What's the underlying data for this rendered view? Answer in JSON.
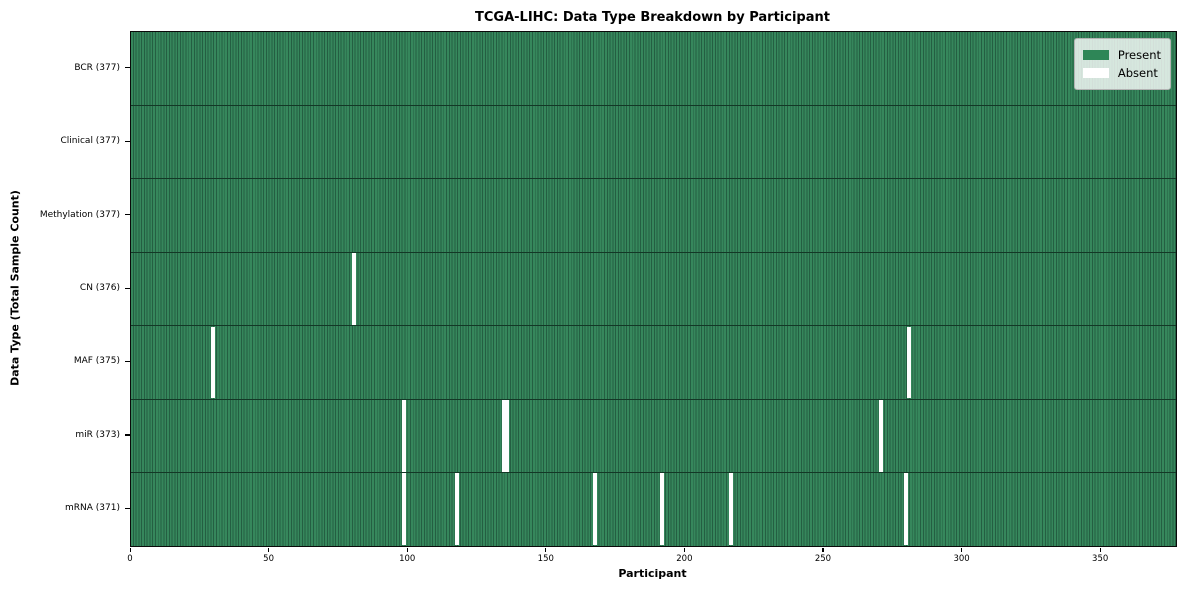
{
  "chart_data": {
    "type": "heatmap",
    "title": "TCGA-LIHC: Data Type Breakdown by Participant",
    "xlabel": "Participant",
    "ylabel": "Data Type (Total Sample Count)",
    "n_participants": 377,
    "xlim": [
      0,
      377
    ],
    "x_ticks": [
      0,
      50,
      100,
      150,
      200,
      250,
      300,
      350
    ],
    "rows": [
      {
        "label": "BCR (377)",
        "data_type": "BCR",
        "total_sample_count": 377,
        "absent_participants": []
      },
      {
        "label": "Clinical (377)",
        "data_type": "Clinical",
        "total_sample_count": 377,
        "absent_participants": []
      },
      {
        "label": "Methylation (377)",
        "data_type": "Methylation",
        "total_sample_count": 377,
        "absent_participants": []
      },
      {
        "label": "CN (376)",
        "data_type": "CN",
        "total_sample_count": 376,
        "absent_participants": [
          80
        ]
      },
      {
        "label": "MAF (375)",
        "data_type": "MAF",
        "total_sample_count": 375,
        "absent_participants": [
          29,
          280
        ]
      },
      {
        "label": "miR (373)",
        "data_type": "miR",
        "total_sample_count": 373,
        "absent_participants": [
          98,
          134,
          135,
          270
        ]
      },
      {
        "label": "mRNA (371)",
        "data_type": "mRNA",
        "total_sample_count": 371,
        "absent_participants": [
          98,
          117,
          167,
          191,
          216,
          279
        ]
      }
    ],
    "legend": {
      "position": "upper right",
      "entries": [
        {
          "label": "Present",
          "color": "#2e8657"
        },
        {
          "label": "Absent",
          "color": "#ffffff"
        }
      ]
    },
    "colors": {
      "present_fill": "#36875c",
      "cell_edge": "#245f42",
      "row_divider": "#133826",
      "absent_fill": "#ffffff",
      "spine": "#0a0a0a"
    },
    "grid": "row dividers only, vertical cell edges"
  }
}
